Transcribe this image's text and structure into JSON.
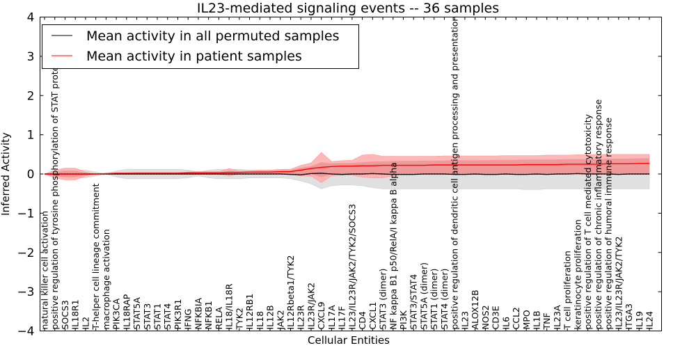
{
  "chart_data": {
    "type": "line",
    "title": "IL23-mediated signaling events -- 36 samples",
    "xlabel": "Cellular Entities",
    "ylabel": "Inferred Activity",
    "ylim": [
      -4,
      4
    ],
    "yticks": [
      -4,
      -3,
      -2,
      -1,
      0,
      1,
      2,
      3,
      4
    ],
    "ytick_labels": [
      "−4",
      "−3",
      "−2",
      "−1",
      "0",
      "1",
      "2",
      "3",
      "4"
    ],
    "grid": false,
    "legend_position": "top-left",
    "legend": [
      {
        "label": "Mean activity in all permuted samples",
        "color": "#000000"
      },
      {
        "label": "Mean activity in patient samples",
        "color": "#ff0000"
      }
    ],
    "categories": [
      "natural killer cell activation",
      "positive regulation of tyrosine phosphorylation of STAT protein",
      "SOCS3",
      "IL18R1",
      "IL2",
      "T-helper cell lineage commitment",
      "macrophage activation",
      "PIK3CA",
      "IL18RAP",
      "STAT5A",
      "STAT3",
      "STAT1",
      "STAT4",
      "PIK3R1",
      "IFNG",
      "NFKBIA",
      "NFKB1",
      "RELA",
      "IL18/IL18R",
      "TYK2",
      "IL12RB1",
      "IL18",
      "IL12B",
      "JAK2",
      "IL12Rbeta1/TYK2",
      "IL23R",
      "IL23R/JAK2",
      "CXCL9",
      "IL17A",
      "IL17F",
      "IL23/IL23R/JAK2/TYK2/SOCS3",
      "CD4",
      "CXCL1",
      "STAT3 (dimer)",
      "NF kappa B1 p50/RelA/I kappa B alpha",
      "PI3K",
      "STAT3/STAT4",
      "STAT5A (dimer)",
      "STAT1 (dimer)",
      "STAT4 (dimer)",
      "positive regulation of dendritic cell antigen processing and presentation",
      "IL23",
      "ALOX12B",
      "NOS2",
      "CD3E",
      "IL6",
      "CCL2",
      "MPO",
      "IL1B",
      "TNF",
      "IL23A",
      "T cell proliferation",
      "keratinocyte proliferation",
      "positive regulation of T cell mediated cytotoxicity",
      "positive regulation of chronic inflammatory response",
      "positive regulation of humoral immune response",
      "IL23/IL23R/JAK2/TYK2",
      "ITGA3",
      "IL19",
      "IL24"
    ],
    "series": [
      {
        "name": "Mean activity in all permuted samples",
        "color": "#000000",
        "values": [
          0,
          0,
          0,
          0,
          0,
          0,
          0,
          0,
          0,
          0,
          0,
          0,
          0,
          0,
          0,
          0,
          0,
          0,
          0,
          0,
          0,
          0,
          0,
          0,
          -0.01,
          -0.02,
          0.01,
          0.02,
          0,
          -0.01,
          0,
          0,
          0.01,
          0,
          -0.01,
          -0.01,
          -0.01,
          0,
          0,
          0,
          -0.01,
          -0.01,
          0,
          -0.01,
          -0.01,
          0,
          -0.01,
          -0.01,
          0,
          -0.01,
          0,
          0,
          0.01,
          0,
          0,
          0,
          -0.01,
          0,
          0,
          0
        ],
        "band_lower": [
          0,
          -0.05,
          -0.1,
          -0.1,
          -0.1,
          -0.05,
          0,
          -0.08,
          -0.12,
          -0.12,
          -0.12,
          -0.12,
          -0.12,
          -0.12,
          -0.1,
          -0.05,
          -0.1,
          -0.12,
          -0.12,
          -0.12,
          -0.1,
          -0.1,
          -0.1,
          -0.1,
          -0.12,
          -0.18,
          -0.25,
          -0.38,
          -0.3,
          -0.28,
          -0.28,
          -0.3,
          -0.35,
          -0.38,
          -0.38,
          -0.38,
          -0.38,
          -0.38,
          -0.38,
          -0.38,
          -0.38,
          -0.38,
          -0.38,
          -0.38,
          -0.38,
          -0.38,
          -0.38,
          -0.4,
          -0.4,
          -0.38,
          -0.38,
          -0.38,
          -0.38,
          -0.38,
          -0.38,
          -0.38,
          -0.38,
          -0.38,
          -0.38,
          -0.38
        ],
        "band_upper": [
          0,
          0.05,
          0.1,
          0.1,
          0.1,
          0.05,
          0,
          0.08,
          0.12,
          0.12,
          0.12,
          0.12,
          0.12,
          0.12,
          0.1,
          0.05,
          0.1,
          0.12,
          0.12,
          0.12,
          0.1,
          0.1,
          0.1,
          0.1,
          0.05,
          0.0,
          0.0,
          0.02,
          0.0,
          0.0,
          0.0,
          0.0,
          0.0,
          0.0,
          0.0,
          0.0,
          0.0,
          0.0,
          0.0,
          0.0,
          0.0,
          0.0,
          0.0,
          0.0,
          0.0,
          0.0,
          0.0,
          0.0,
          0.0,
          0.0,
          0.0,
          0.0,
          0.0,
          0.0,
          0.0,
          0.0,
          0.0,
          0.0,
          0.0,
          0.0
        ]
      },
      {
        "name": "Mean activity in patient samples",
        "color": "#ff0000",
        "values": [
          0,
          0,
          0,
          0,
          0,
          0,
          0.01,
          0.02,
          0.02,
          0.02,
          0.02,
          0.02,
          0.02,
          0.02,
          0.03,
          0.03,
          0.03,
          0.03,
          0.04,
          0.04,
          0.05,
          0.05,
          0.05,
          0.06,
          0.06,
          0.1,
          0.14,
          0.17,
          0.19,
          0.2,
          0.2,
          0.21,
          0.21,
          0.22,
          0.22,
          0.22,
          0.22,
          0.22,
          0.23,
          0.23,
          0.23,
          0.23,
          0.23,
          0.23,
          0.23,
          0.23,
          0.23,
          0.24,
          0.24,
          0.24,
          0.24,
          0.25,
          0.25,
          0.25,
          0.25,
          0.26,
          0.26,
          0.26,
          0.27,
          0.27
        ],
        "band_lower": [
          0,
          -0.1,
          -0.15,
          -0.15,
          -0.05,
          0,
          0,
          0,
          0,
          0,
          0,
          0,
          0,
          0,
          0,
          0,
          0,
          0,
          -0.05,
          0,
          0,
          0,
          0,
          0,
          0,
          -0.05,
          -0.05,
          -0.22,
          -0.05,
          -0.03,
          -0.03,
          -0.08,
          -0.1,
          -0.1,
          -0.05,
          0,
          0,
          0,
          0,
          0,
          0,
          0,
          0,
          0,
          0,
          0,
          0,
          0,
          0,
          0,
          0,
          0,
          0,
          0,
          0,
          0,
          0,
          0,
          0,
          0
        ],
        "band_upper": [
          0,
          0.1,
          0.15,
          0.15,
          0.05,
          0,
          0.02,
          0.03,
          0.03,
          0.04,
          0.04,
          0.04,
          0.04,
          0.04,
          0.05,
          0.06,
          0.06,
          0.06,
          0.14,
          0.08,
          0.08,
          0.1,
          0.1,
          0.12,
          0.12,
          0.22,
          0.28,
          0.55,
          0.32,
          0.34,
          0.35,
          0.48,
          0.5,
          0.45,
          0.45,
          0.45,
          0.45,
          0.45,
          0.45,
          0.46,
          0.46,
          0.46,
          0.46,
          0.46,
          0.46,
          0.47,
          0.47,
          0.47,
          0.47,
          0.48,
          0.48,
          0.48,
          0.49,
          0.49,
          0.5,
          0.5,
          0.5,
          0.5,
          0.5,
          0.5
        ],
        "inner_band_lower": [
          0,
          -0.05,
          -0.08,
          -0.08,
          -0.03,
          0,
          0,
          0,
          0,
          0,
          0,
          0,
          0,
          0,
          0,
          0,
          0,
          0,
          0,
          0,
          0,
          0,
          0,
          0,
          0,
          0,
          0,
          -0.08,
          0,
          0,
          0,
          0,
          0,
          0,
          0,
          0,
          0,
          0,
          0,
          0,
          0,
          0,
          0,
          0,
          0,
          0,
          0,
          0,
          0,
          0,
          0,
          0,
          0,
          0,
          0,
          0,
          0,
          0,
          0,
          0
        ],
        "inner_band_upper": [
          0,
          0.05,
          0.08,
          0.08,
          0.03,
          0,
          0.01,
          0.02,
          0.02,
          0.03,
          0.03,
          0.03,
          0.03,
          0.03,
          0.04,
          0.04,
          0.04,
          0.04,
          0.08,
          0.06,
          0.06,
          0.07,
          0.07,
          0.09,
          0.1,
          0.16,
          0.2,
          0.3,
          0.27,
          0.28,
          0.28,
          0.3,
          0.32,
          0.32,
          0.33,
          0.33,
          0.33,
          0.34,
          0.34,
          0.34,
          0.35,
          0.35,
          0.35,
          0.35,
          0.36,
          0.36,
          0.36,
          0.37,
          0.37,
          0.37,
          0.37,
          0.38,
          0.38,
          0.38,
          0.38,
          0.39,
          0.39,
          0.39,
          0.4,
          0.4
        ]
      }
    ],
    "band_colors": {
      "permuted_band": "#e0e0e0",
      "patient_band_outer": "#ffaaaa",
      "patient_band_inner": "#e89090"
    }
  }
}
